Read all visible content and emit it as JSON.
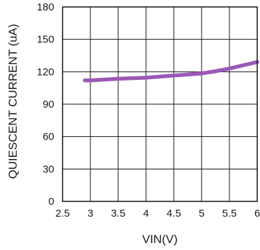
{
  "chart_data": {
    "type": "line",
    "title": "",
    "xlabel": "VIN(V)",
    "ylabel": "QUIESCENT CURRENT (uA)",
    "xlim": [
      2.5,
      6
    ],
    "ylim": [
      0,
      180
    ],
    "x_ticks": [
      "2.5",
      "3",
      "3.5",
      "4",
      "4.5",
      "5",
      "5.5",
      "6"
    ],
    "y_ticks": [
      "0",
      "30",
      "60",
      "90",
      "120",
      "150",
      "180"
    ],
    "grid": true,
    "legend": "none",
    "series": [
      {
        "color": "#9b59b6",
        "x": [
          2.9,
          3.0,
          3.5,
          4.0,
          4.5,
          5.0,
          5.25,
          5.5,
          5.75,
          6.0
        ],
        "y": [
          112,
          112,
          113.5,
          114.5,
          116.5,
          118.5,
          120.5,
          123,
          126,
          129
        ]
      }
    ]
  }
}
